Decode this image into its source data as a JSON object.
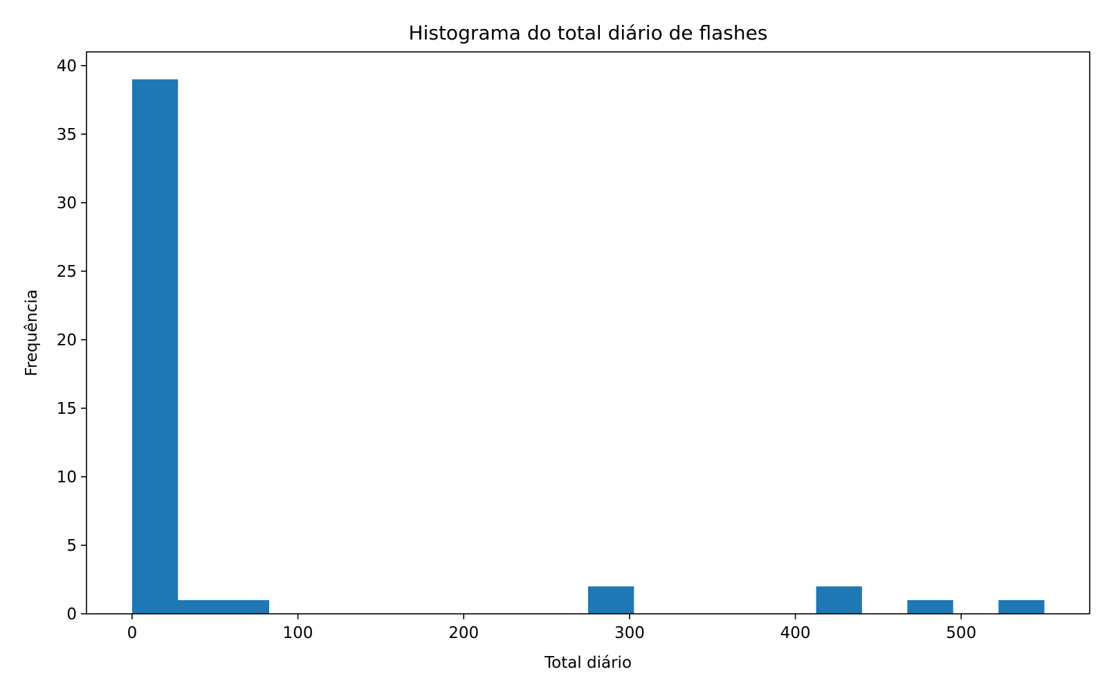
{
  "chart_data": {
    "type": "bar",
    "title": "Histograma do total diário de flashes",
    "xlabel": "Total diário",
    "ylabel": "Frequência",
    "bin_edges": [
      0,
      27.5,
      55,
      82.5,
      110,
      137.5,
      165,
      192.5,
      220,
      247.5,
      275,
      302.5,
      330,
      357.5,
      385,
      412.5,
      440,
      467.5,
      495,
      522.5,
      550
    ],
    "counts": [
      39,
      1,
      1,
      0,
      0,
      0,
      0,
      0,
      0,
      0,
      2,
      0,
      0,
      0,
      0,
      2,
      0,
      1,
      0,
      1
    ],
    "xlim": [
      -27.5,
      577.5
    ],
    "ylim": [
      0,
      41
    ],
    "xticks": [
      0,
      100,
      200,
      300,
      400,
      500
    ],
    "xtick_labels": [
      "0",
      "100",
      "200",
      "300",
      "400",
      "500"
    ],
    "yticks": [
      0,
      5,
      10,
      15,
      20,
      25,
      30,
      35,
      40
    ],
    "ytick_labels": [
      "0",
      "5",
      "10",
      "15",
      "20",
      "25",
      "30",
      "35",
      "40"
    ],
    "bar_color": "#1f77b4",
    "grid": false,
    "legend": "none"
  }
}
